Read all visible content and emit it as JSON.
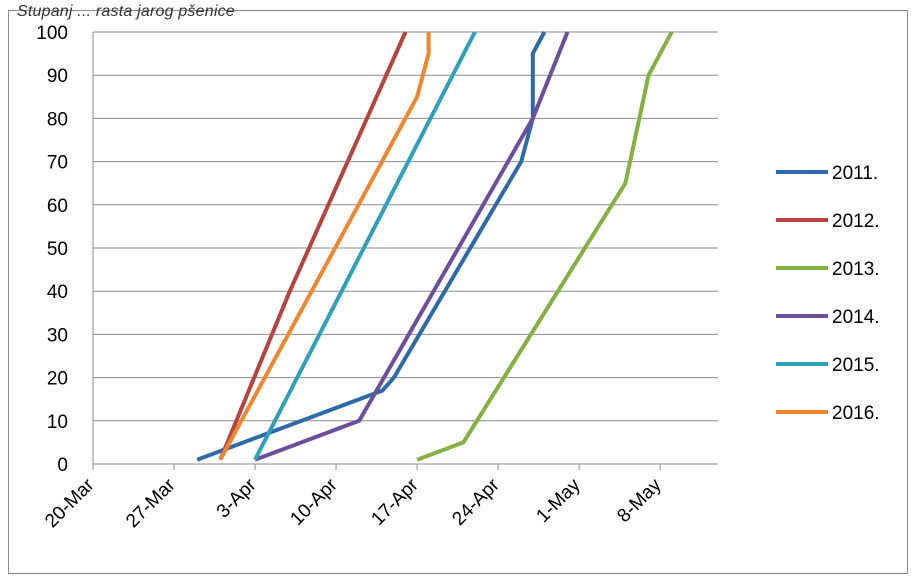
{
  "caption_fragment": "Stupanj ... rasta jarog pšenice",
  "chart_data": {
    "type": "line",
    "title": "",
    "xlabel": "",
    "ylabel": "",
    "ylim": [
      0,
      100
    ],
    "yticks": [
      0,
      10,
      20,
      30,
      40,
      50,
      60,
      70,
      80,
      90,
      100
    ],
    "xlim": [
      "2011-03-20",
      "2011-05-13"
    ],
    "xticks": [
      {
        "date": "2011-03-20",
        "label": "20-Mar"
      },
      {
        "date": "2011-03-27",
        "label": "27-Mar"
      },
      {
        "date": "2011-04-03",
        "label": "3-Apr"
      },
      {
        "date": "2011-04-10",
        "label": "10-Apr"
      },
      {
        "date": "2011-04-17",
        "label": "17-Apr"
      },
      {
        "date": "2011-04-24",
        "label": "24-Apr"
      },
      {
        "date": "2011-05-01",
        "label": "1-May"
      },
      {
        "date": "2011-05-08",
        "label": "8-May"
      }
    ],
    "grid": "horizontal",
    "legend_position": "right",
    "series": [
      {
        "name": "2011.",
        "color": "#2e6aa8",
        "points": [
          [
            "2011-03-29",
            1
          ],
          [
            "2011-04-14",
            17
          ],
          [
            "2011-04-15",
            20
          ],
          [
            "2011-04-26",
            70
          ],
          [
            "2011-04-27",
            80
          ],
          [
            "2011-04-27",
            95
          ],
          [
            "2011-04-28",
            100
          ]
        ]
      },
      {
        "name": "2012.",
        "color": "#b5443f",
        "points": [
          [
            "2011-03-31",
            1
          ],
          [
            "2011-04-06",
            40
          ],
          [
            "2011-04-16",
            100
          ]
        ]
      },
      {
        "name": "2013.",
        "color": "#84b044",
        "points": [
          [
            "2011-04-17",
            1
          ],
          [
            "2011-04-21",
            5
          ],
          [
            "2011-05-05",
            65
          ],
          [
            "2011-05-07",
            90
          ],
          [
            "2011-05-09",
            100
          ]
        ]
      },
      {
        "name": "2014.",
        "color": "#6c4f9a",
        "points": [
          [
            "2011-04-03",
            1
          ],
          [
            "2011-04-12",
            10
          ],
          [
            "2011-04-27",
            80
          ],
          [
            "2011-04-30",
            100
          ]
        ]
      },
      {
        "name": "2015.",
        "color": "#2f9fba",
        "points": [
          [
            "2011-04-03",
            1
          ],
          [
            "2011-04-22",
            100
          ]
        ]
      },
      {
        "name": "2016.",
        "color": "#ed8732",
        "points": [
          [
            "2011-03-31",
            1
          ],
          [
            "2011-04-17",
            85
          ],
          [
            "2011-04-18",
            95
          ],
          [
            "2011-04-18",
            100
          ]
        ]
      }
    ]
  }
}
